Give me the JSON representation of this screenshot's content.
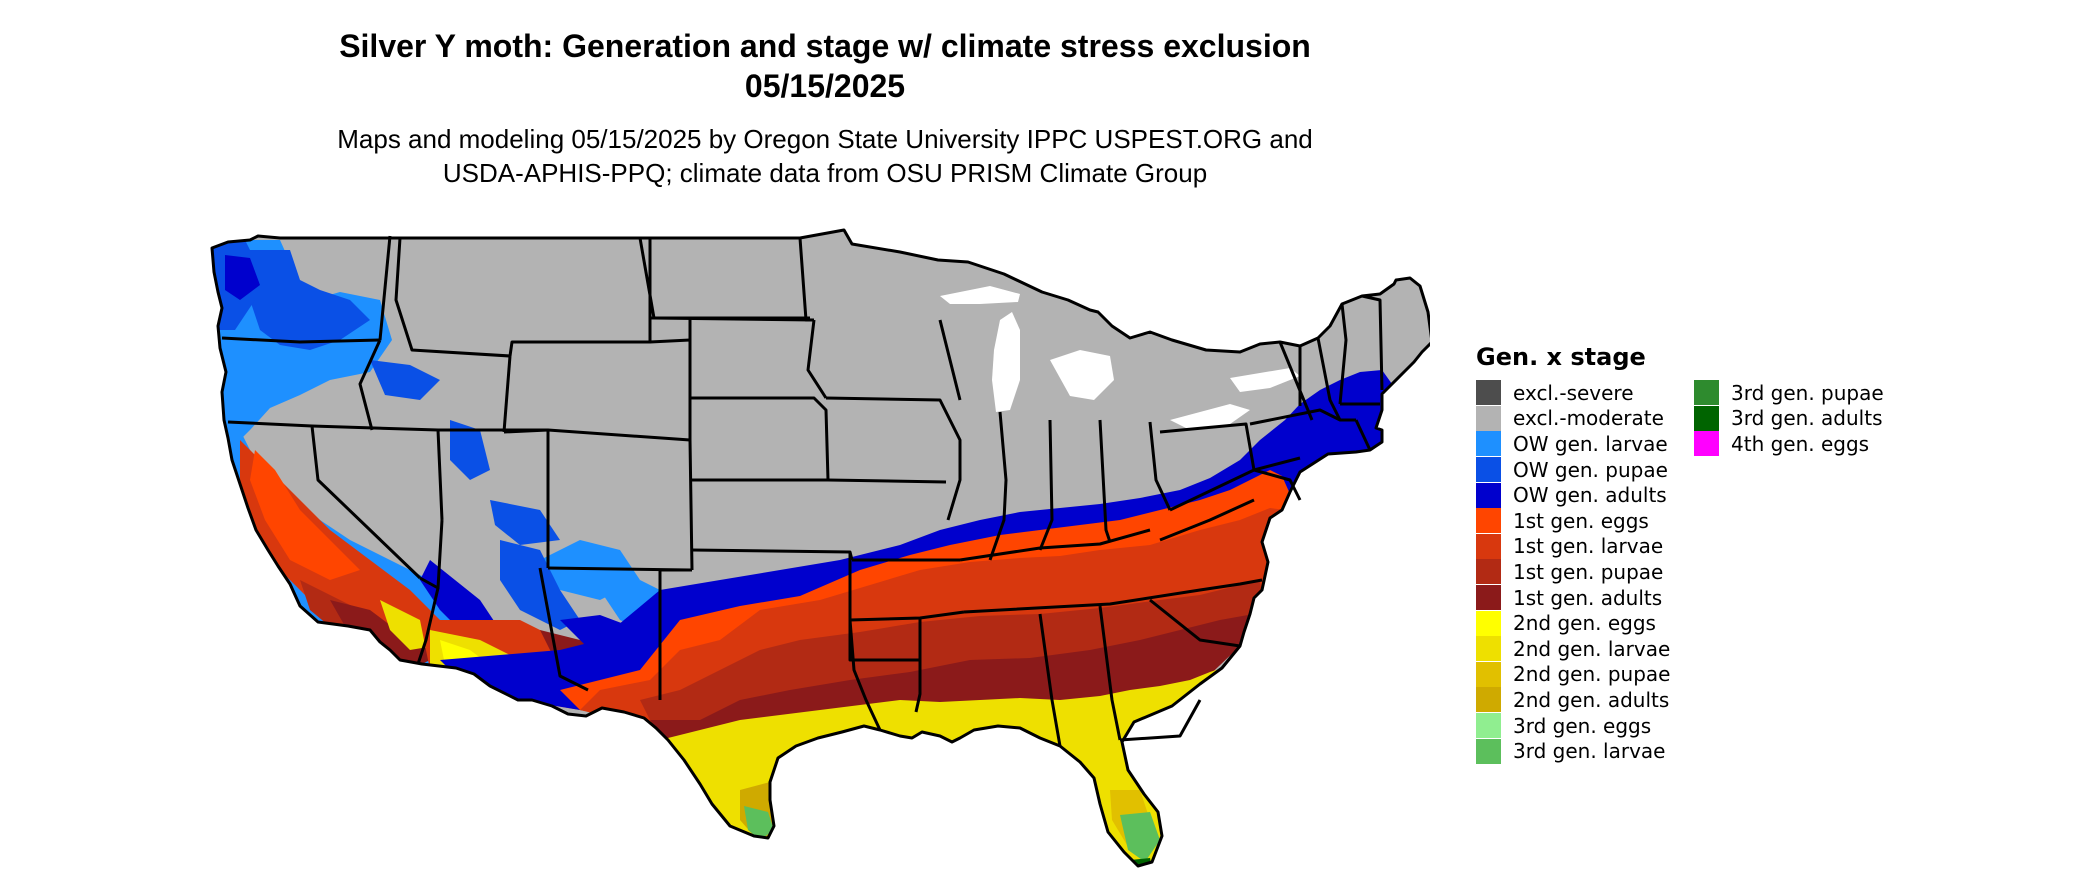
{
  "header": {
    "title_line1": "Silver Y moth: Generation and stage w/ climate stress exclusion",
    "title_line2": "05/15/2025",
    "subtitle_line1": "Maps and modeling 05/15/2025 by Oregon State University IPPC USPEST.ORG and",
    "subtitle_line2": "USDA-APHIS-PPQ; climate data from OSU PRISM Climate Group"
  },
  "legend": {
    "title": "Gen. x stage",
    "items": [
      {
        "label": "excl.-severe",
        "color": "#4d4d4d"
      },
      {
        "label": "excl.-moderate",
        "color": "#b3b3b3"
      },
      {
        "label": "OW gen. larvae",
        "color": "#1e90ff"
      },
      {
        "label": "OW gen. pupae",
        "color": "#0a50e6"
      },
      {
        "label": "OW gen. adults",
        "color": "#0000cd"
      },
      {
        "label": "1st gen. eggs",
        "color": "#ff4500"
      },
      {
        "label": "1st gen. larvae",
        "color": "#d8380e"
      },
      {
        "label": "1st gen. pupae",
        "color": "#b22a14"
      },
      {
        "label": "1st gen. adults",
        "color": "#8b1a1a"
      },
      {
        "label": "2nd gen. eggs",
        "color": "#ffff00"
      },
      {
        "label": "2nd gen. larvae",
        "color": "#eee000"
      },
      {
        "label": "2nd gen. pupae",
        "color": "#e1c000"
      },
      {
        "label": "2nd gen. adults",
        "color": "#cfaa00"
      },
      {
        "label": "3rd gen. eggs",
        "color": "#90ee90"
      },
      {
        "label": "3rd gen. larvae",
        "color": "#5cbf5c"
      },
      {
        "label": "3rd gen. pupae",
        "color": "#2e8b2e"
      },
      {
        "label": "3rd gen. adults",
        "color": "#006400"
      },
      {
        "label": "4th gen. eggs",
        "color": "#ff00ff"
      }
    ]
  }
}
